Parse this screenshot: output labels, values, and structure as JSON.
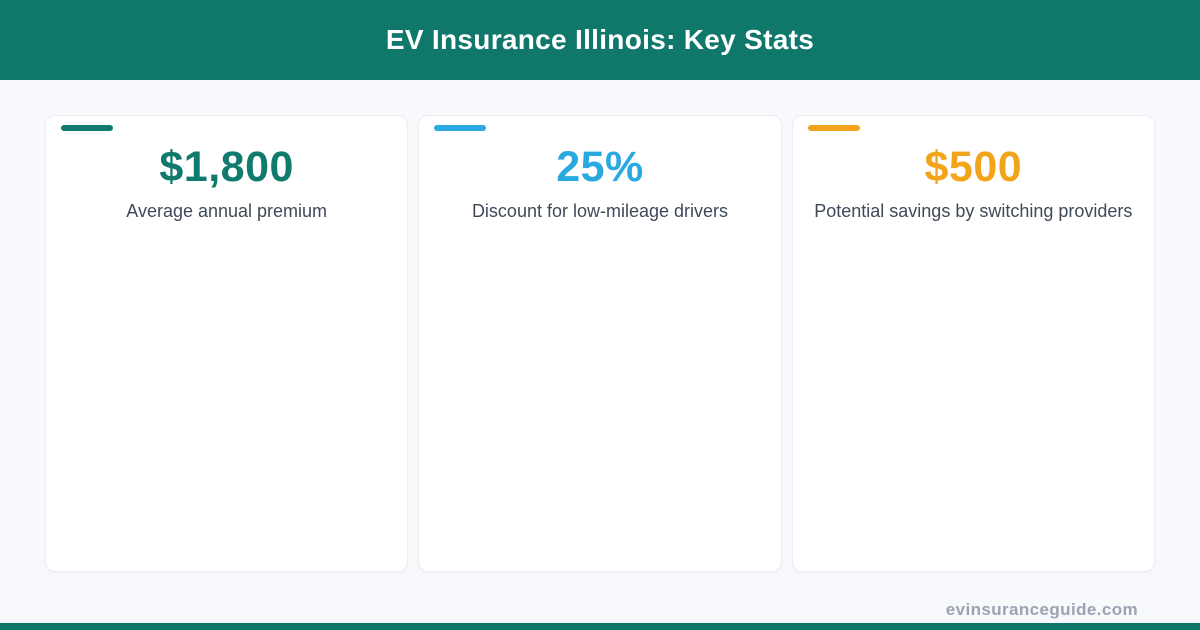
{
  "page": {
    "title": "EV Insurance Illinois: Key Stats",
    "watermark": "evinsuranceguide.com"
  },
  "colors": {
    "header_bg": "#0f786b",
    "bottom_bar": "#0f786b",
    "teal": "#107a6d",
    "blue": "#2aa9e0",
    "orange": "#f2a41b",
    "label_text": "#3f4a59",
    "watermark_text": "#9aa3b2",
    "page_bg": "#f7f9fc",
    "card_bg": "#ffffff",
    "card_border": "#e9edf2"
  },
  "stats": [
    {
      "value": "$1,800",
      "label": "Average annual premium",
      "accent": "#107a6d"
    },
    {
      "value": "25%",
      "label": "Discount for low-mileage drivers",
      "accent": "#2aa9e0"
    },
    {
      "value": "$500",
      "label": "Potential savings by switching providers",
      "accent": "#f2a41b"
    }
  ],
  "chart_data": {
    "type": "table",
    "title": "EV Insurance Illinois: Key Stats",
    "columns": [
      "metric",
      "value"
    ],
    "rows": [
      {
        "metric": "Average annual premium",
        "value": "$1,800",
        "numeric_value": 1800,
        "unit": "USD"
      },
      {
        "metric": "Discount for low-mileage drivers",
        "value": "25%",
        "numeric_value": 25,
        "unit": "percent"
      },
      {
        "metric": "Potential savings by switching providers",
        "value": "$500",
        "numeric_value": 500,
        "unit": "USD"
      }
    ],
    "legend": false,
    "source": "evinsuranceguide.com"
  }
}
